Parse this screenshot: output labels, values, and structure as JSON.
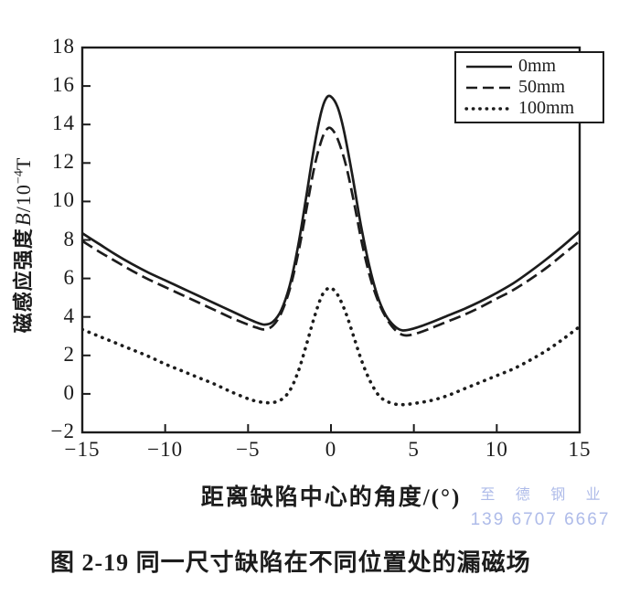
{
  "figure": {
    "caption": "图 2-19  同一尺寸缺陷在不同位置处的漏磁场",
    "watermark": {
      "line1": "至 德 钢 业",
      "line2": "139 6707 6667",
      "color": "#aebbe9"
    }
  },
  "chart_data": {
    "type": "line",
    "title": "",
    "xlabel": "距离缺陷中心的角度/(°)",
    "ylabel": "磁感应强度B/10⁻⁴T",
    "ylabel_parts": {
      "prefix": "磁感应强度",
      "variable": "B",
      "slash_base": "/10",
      "superscript": "−4",
      "unit": "T"
    },
    "xlim": [
      -15,
      15
    ],
    "ylim": [
      -2,
      18
    ],
    "grid": false,
    "ink_color": "#1c1c1c",
    "xticks": {
      "values": [
        -15,
        -10,
        -5,
        0,
        5,
        10,
        15
      ],
      "labels": [
        "−15",
        "−10",
        "−5",
        "0",
        "5",
        "10",
        "15"
      ]
    },
    "yticks": {
      "values": [
        -2,
        0,
        2,
        4,
        6,
        8,
        10,
        12,
        14,
        16,
        18
      ],
      "labels": [
        "−2",
        "0",
        "2",
        "4",
        "6",
        "8",
        "10",
        "12",
        "14",
        "16",
        "18"
      ]
    },
    "legend": {
      "position": "top-right",
      "entries": [
        {
          "label": "0mm",
          "line": "solid"
        },
        {
          "label": "50mm",
          "line": "dashed"
        },
        {
          "label": "100mm",
          "line": "dotted"
        }
      ]
    },
    "series": [
      {
        "name": "0mm",
        "line": "solid",
        "color": "#1c1c1c",
        "points": [
          [
            -15,
            8.35
          ],
          [
            -14,
            7.8
          ],
          [
            -13,
            7.25
          ],
          [
            -12,
            6.75
          ],
          [
            -11,
            6.3
          ],
          [
            -10,
            5.9
          ],
          [
            -9,
            5.5
          ],
          [
            -8,
            5.1
          ],
          [
            -7,
            4.7
          ],
          [
            -6,
            4.3
          ],
          [
            -5,
            3.9
          ],
          [
            -4.5,
            3.72
          ],
          [
            -4,
            3.6
          ],
          [
            -3.5,
            3.75
          ],
          [
            -3,
            4.35
          ],
          [
            -2.5,
            5.6
          ],
          [
            -2,
            7.6
          ],
          [
            -1.5,
            10.2
          ],
          [
            -1,
            12.9
          ],
          [
            -0.6,
            14.6
          ],
          [
            -0.3,
            15.35
          ],
          [
            0,
            15.45
          ],
          [
            0.4,
            14.9
          ],
          [
            0.8,
            13.6
          ],
          [
            1.3,
            11.3
          ],
          [
            1.8,
            8.8
          ],
          [
            2.3,
            6.7
          ],
          [
            2.8,
            5.1
          ],
          [
            3.3,
            4.1
          ],
          [
            3.8,
            3.55
          ],
          [
            4.3,
            3.3
          ],
          [
            5,
            3.4
          ],
          [
            6,
            3.7
          ],
          [
            7,
            4.05
          ],
          [
            8,
            4.4
          ],
          [
            9,
            4.8
          ],
          [
            10,
            5.25
          ],
          [
            11,
            5.75
          ],
          [
            12,
            6.35
          ],
          [
            13,
            7.0
          ],
          [
            14,
            7.7
          ],
          [
            15,
            8.45
          ]
        ]
      },
      {
        "name": "50mm",
        "line": "dashed",
        "color": "#1c1c1c",
        "points": [
          [
            -15,
            7.95
          ],
          [
            -14,
            7.4
          ],
          [
            -13,
            6.9
          ],
          [
            -12,
            6.4
          ],
          [
            -11,
            5.95
          ],
          [
            -10,
            5.55
          ],
          [
            -9,
            5.15
          ],
          [
            -8,
            4.75
          ],
          [
            -7,
            4.35
          ],
          [
            -6,
            3.95
          ],
          [
            -5,
            3.6
          ],
          [
            -4.5,
            3.45
          ],
          [
            -4,
            3.35
          ],
          [
            -3.5,
            3.55
          ],
          [
            -3,
            4.2
          ],
          [
            -2.5,
            5.4
          ],
          [
            -2,
            7.2
          ],
          [
            -1.5,
            9.5
          ],
          [
            -1,
            11.8
          ],
          [
            -0.6,
            13.1
          ],
          [
            -0.3,
            13.7
          ],
          [
            0,
            13.8
          ],
          [
            0.4,
            13.25
          ],
          [
            0.9,
            11.9
          ],
          [
            1.4,
            9.9
          ],
          [
            1.9,
            7.7
          ],
          [
            2.4,
            5.95
          ],
          [
            2.9,
            4.7
          ],
          [
            3.4,
            3.85
          ],
          [
            3.9,
            3.3
          ],
          [
            4.4,
            3.05
          ],
          [
            5,
            3.1
          ],
          [
            6,
            3.4
          ],
          [
            7,
            3.75
          ],
          [
            8,
            4.1
          ],
          [
            9,
            4.5
          ],
          [
            10,
            4.95
          ],
          [
            11,
            5.4
          ],
          [
            12,
            5.95
          ],
          [
            13,
            6.55
          ],
          [
            14,
            7.25
          ],
          [
            15,
            7.95
          ]
        ]
      },
      {
        "name": "100mm",
        "line": "dotted",
        "color": "#1c1c1c",
        "points": [
          [
            -15,
            3.35
          ],
          [
            -14,
            3.0
          ],
          [
            -13,
            2.65
          ],
          [
            -12,
            2.3
          ],
          [
            -11,
            1.95
          ],
          [
            -10,
            1.55
          ],
          [
            -9,
            1.2
          ],
          [
            -8,
            0.85
          ],
          [
            -7,
            0.5
          ],
          [
            -6,
            0.1
          ],
          [
            -5,
            -0.25
          ],
          [
            -4.5,
            -0.38
          ],
          [
            -4,
            -0.45
          ],
          [
            -3.5,
            -0.45
          ],
          [
            -3,
            -0.3
          ],
          [
            -2.5,
            0.15
          ],
          [
            -2,
            1.1
          ],
          [
            -1.5,
            2.5
          ],
          [
            -1,
            4.0
          ],
          [
            -0.6,
            5.0
          ],
          [
            -0.3,
            5.4
          ],
          [
            0,
            5.5
          ],
          [
            0.4,
            5.15
          ],
          [
            0.9,
            4.2
          ],
          [
            1.4,
            2.9
          ],
          [
            1.9,
            1.6
          ],
          [
            2.4,
            0.6
          ],
          [
            2.9,
            -0.1
          ],
          [
            3.4,
            -0.4
          ],
          [
            4,
            -0.55
          ],
          [
            4.5,
            -0.55
          ],
          [
            5,
            -0.5
          ],
          [
            6,
            -0.35
          ],
          [
            7,
            -0.1
          ],
          [
            8,
            0.25
          ],
          [
            9,
            0.6
          ],
          [
            10,
            0.95
          ],
          [
            11,
            1.3
          ],
          [
            12,
            1.75
          ],
          [
            13,
            2.25
          ],
          [
            14,
            2.85
          ],
          [
            15,
            3.5
          ]
        ]
      }
    ]
  }
}
